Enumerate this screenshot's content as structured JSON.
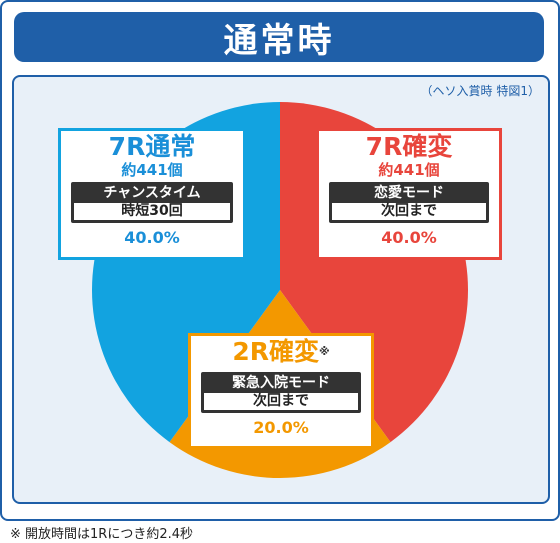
{
  "header": {
    "title": "通常時"
  },
  "note": "（ヘソ入賞時 特図1）",
  "footnote": "※ 開放時間は1Rにつき約2.4秒",
  "chart_data": {
    "type": "pie",
    "title": "通常時",
    "slices": [
      {
        "name": "7R確変",
        "value": 40.0,
        "pct_label": "40.0%",
        "count": "約441個",
        "mode": "恋愛モード",
        "sub": "次回まで",
        "color": "#e8453c"
      },
      {
        "name": "2R確変",
        "value": 20.0,
        "pct_label": "20.0%",
        "count": "",
        "mark": "※",
        "mode": "緊急入院モード",
        "sub": "次回まで",
        "color": "#f39800"
      },
      {
        "name": "7R通常",
        "value": 40.0,
        "pct_label": "40.0%",
        "count": "約441個",
        "mode": "チャンスタイム",
        "sub": "時短30回",
        "color": "#12a3e0"
      }
    ]
  },
  "colors": {
    "brand": "#1f5fa8",
    "text_7r_kakuhen": "#e8453c",
    "text_7r_tsujo": "#1a8fd8",
    "text_2r": "#f39800"
  }
}
